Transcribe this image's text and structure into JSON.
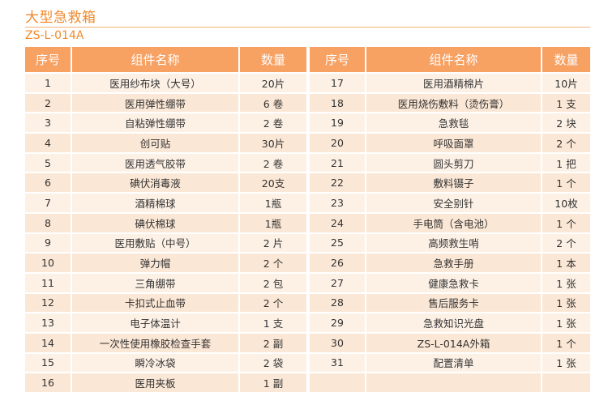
{
  "title": "大型急救箱",
  "model": "ZS-L-014A",
  "columns": {
    "no": "序号",
    "name": "组件名称",
    "qty": "数量"
  },
  "colors": {
    "accent": "#f08a2e",
    "header_bg": "#f7a163",
    "row_light": "#fdf1e6",
    "row_dark": "#fbe7d5"
  },
  "left_rows": [
    {
      "no": "1",
      "name": "医用纱布块（大号）",
      "qty": "20片"
    },
    {
      "no": "2",
      "name": "医用弹性绷带",
      "qty": "6 卷"
    },
    {
      "no": "3",
      "name": "自粘弹性绷带",
      "qty": "2 卷"
    },
    {
      "no": "4",
      "name": "创可贴",
      "qty": "30片"
    },
    {
      "no": "5",
      "name": "医用透气胶带",
      "qty": "2 卷"
    },
    {
      "no": "6",
      "name": "碘伏消毒液",
      "qty": "20支"
    },
    {
      "no": "7",
      "name": "酒精棉球",
      "qty": "1瓶"
    },
    {
      "no": "8",
      "name": "碘伏棉球",
      "qty": "1瓶"
    },
    {
      "no": "9",
      "name": "医用敷贴（中号）",
      "qty": "2 片"
    },
    {
      "no": "10",
      "name": "弹力帽",
      "qty": "2 个"
    },
    {
      "no": "11",
      "name": "三角绷带",
      "qty": "2 包"
    },
    {
      "no": "12",
      "name": "卡扣式止血带",
      "qty": "2 个"
    },
    {
      "no": "13",
      "name": "电子体温计",
      "qty": "1 支"
    },
    {
      "no": "14",
      "name": "一次性使用橡胶检查手套",
      "qty": "2 副"
    },
    {
      "no": "15",
      "name": "瞬冷冰袋",
      "qty": "2 袋"
    },
    {
      "no": "16",
      "name": "医用夹板",
      "qty": "1 副"
    }
  ],
  "right_rows": [
    {
      "no": "17",
      "name": "医用酒精棉片",
      "qty": "10片"
    },
    {
      "no": "18",
      "name": "医用烧伤敷料（烫伤膏）",
      "qty": "1 支"
    },
    {
      "no": "19",
      "name": "急救毯",
      "qty": "2 块"
    },
    {
      "no": "20",
      "name": "呼吸面罩",
      "qty": "2 个"
    },
    {
      "no": "21",
      "name": "圆头剪刀",
      "qty": "1 把"
    },
    {
      "no": "22",
      "name": "敷料镊子",
      "qty": "1 个"
    },
    {
      "no": "23",
      "name": "安全别针",
      "qty": "10枚"
    },
    {
      "no": "24",
      "name": "手电筒（含电池）",
      "qty": "1 个"
    },
    {
      "no": "25",
      "name": "高频救生哨",
      "qty": "2 个"
    },
    {
      "no": "26",
      "name": "急救手册",
      "qty": "1 本"
    },
    {
      "no": "27",
      "name": "健康急救卡",
      "qty": "1 张"
    },
    {
      "no": "28",
      "name": "售后服务卡",
      "qty": "1 张"
    },
    {
      "no": "29",
      "name": "急救知识光盘",
      "qty": "1 张"
    },
    {
      "no": "30",
      "name": "ZS-L-014A外箱",
      "qty": "1 个"
    },
    {
      "no": "31",
      "name": "配置清单",
      "qty": "1 张"
    },
    {
      "no": "",
      "name": "",
      "qty": ""
    }
  ]
}
